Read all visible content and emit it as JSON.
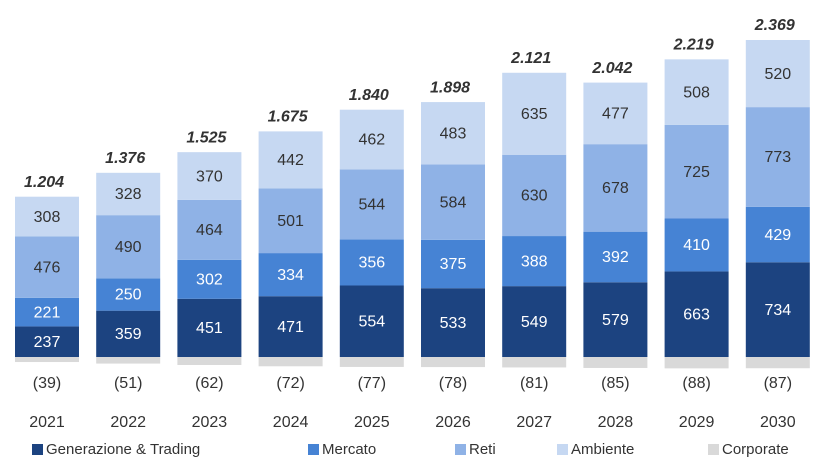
{
  "chart_data": {
    "type": "stacked-bar",
    "categories": [
      "2021",
      "2022",
      "2023",
      "2024",
      "2025",
      "2026",
      "2027",
      "2028",
      "2029",
      "2030"
    ],
    "series": [
      {
        "name": "Generazione & Trading",
        "color": "#1c4380",
        "values": [
          237,
          359,
          451,
          471,
          554,
          533,
          549,
          579,
          663,
          734
        ]
      },
      {
        "name": "Mercato",
        "color": "#4683d4",
        "values": [
          221,
          250,
          302,
          334,
          356,
          375,
          388,
          392,
          410,
          429
        ]
      },
      {
        "name": "Reti",
        "color": "#8fb2e6",
        "values": [
          476,
          490,
          464,
          501,
          544,
          584,
          630,
          678,
          725,
          773
        ]
      },
      {
        "name": "Ambiente",
        "color": "#c6d8f2",
        "values": [
          308,
          328,
          370,
          442,
          462,
          483,
          635,
          477,
          508,
          520
        ]
      },
      {
        "name": "Corporate",
        "color": "#d9d9d9",
        "values": [
          -39,
          -51,
          -62,
          -72,
          -77,
          -78,
          -81,
          -85,
          -88,
          -87
        ],
        "value_labels": [
          "(39)",
          "(51)",
          "(62)",
          "(72)",
          "(77)",
          "(78)",
          "(81)",
          "(85)",
          "(88)",
          "(87)"
        ]
      }
    ],
    "totals": {
      "values": [
        1204,
        1376,
        1525,
        1675,
        1840,
        1898,
        2121,
        2042,
        2219,
        2369
      ],
      "value_labels": [
        "1.204",
        "1.376",
        "1.525",
        "1.675",
        "1.840",
        "1.898",
        "2.121",
        "2.042",
        "2.219",
        "2.369"
      ]
    }
  }
}
